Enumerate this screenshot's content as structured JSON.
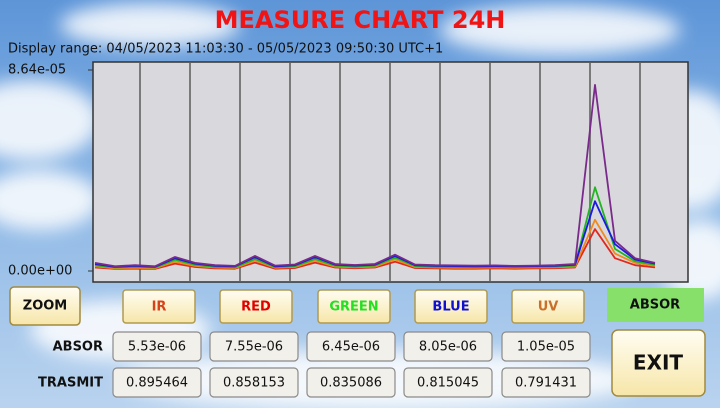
{
  "chart_data": {
    "type": "line",
    "title": "MEASURE CHART 24H",
    "subtitle": "Display range: 04/05/2023 11:03:30 - 05/05/2023 09:50:30 UTC+1",
    "ylim": [
      0,
      8.64e-05
    ],
    "yticks": [
      {
        "value": 8.64e-05,
        "label": "8.64e-05"
      },
      {
        "value": 0,
        "label": "0.00e+00"
      }
    ],
    "series": [
      {
        "name": "IR",
        "color": "#e0281e",
        "values": [
          1.5e-06,
          9e-07,
          1e-06,
          9e-07,
          3.2e-06,
          1.7e-06,
          1.1e-06,
          1e-06,
          3.6e-06,
          1e-06,
          1.3e-06,
          3.6e-06,
          1.5e-06,
          1.2e-06,
          1.5e-06,
          4e-06,
          1.3e-06,
          1.1e-06,
          1e-06,
          1e-06,
          1.1e-06,
          1e-06,
          1.1e-06,
          1.2e-06,
          1.5e-06,
          1.8e-05,
          5.5e-06,
          2.5e-06,
          1.6e-06
        ]
      },
      {
        "name": "RED",
        "color": "#f08a1e",
        "values": [
          2e-06,
          1.2e-06,
          1.4e-06,
          1.2e-06,
          4e-06,
          2.2e-06,
          1.5e-06,
          1.3e-06,
          4.5e-06,
          1.4e-06,
          1.7e-06,
          4.5e-06,
          1.9e-06,
          1.6e-06,
          1.9e-06,
          5e-06,
          1.7e-06,
          1.5e-06,
          1.4e-06,
          1.4e-06,
          1.5e-06,
          1.4e-06,
          1.5e-06,
          1.6e-06,
          1.9e-06,
          2.2e-05,
          7.5e-06,
          3.5e-06,
          2.2e-06
        ]
      },
      {
        "name": "GREEN",
        "color": "#22b422",
        "values": [
          2.5e-06,
          1.5e-06,
          1.8e-06,
          1.5e-06,
          4.8e-06,
          2.7e-06,
          1.8e-06,
          1.6e-06,
          5.2e-06,
          1.7e-06,
          2.1e-06,
          5.2e-06,
          2.3e-06,
          1.9e-06,
          2.3e-06,
          5.8e-06,
          2.1e-06,
          1.8e-06,
          1.7e-06,
          1.7e-06,
          1.8e-06,
          1.7e-06,
          1.8e-06,
          1.9e-06,
          2.3e-06,
          3.6e-05,
          9.5e-06,
          4.2e-06,
          2.7e-06
        ]
      },
      {
        "name": "BLUE",
        "color": "#1a1ae0",
        "values": [
          3e-06,
          1.8e-06,
          2.2e-06,
          1.8e-06,
          5.5e-06,
          3.2e-06,
          2.2e-06,
          2e-06,
          6e-06,
          2e-06,
          2.5e-06,
          6e-06,
          2.7e-06,
          2.3e-06,
          2.7e-06,
          6.5e-06,
          2.5e-06,
          2.2e-06,
          2.1e-06,
          2e-06,
          2.1e-06,
          2e-06,
          2.1e-06,
          2.2e-06,
          2.7e-06,
          3e-05,
          1.15e-05,
          5e-06,
          3.2e-06
        ]
      },
      {
        "name": "UV",
        "color": "#7a2a8a",
        "values": [
          3.5e-06,
          2e-06,
          2.5e-06,
          2e-06,
          6e-06,
          3.5e-06,
          2.5e-06,
          2.2e-06,
          6.5e-06,
          2.3e-06,
          2.8e-06,
          6.5e-06,
          3e-06,
          2.6e-06,
          3e-06,
          7e-06,
          2.8e-06,
          2.5e-06,
          2.4e-06,
          2.3e-06,
          2.4e-06,
          2.2e-06,
          2.3e-06,
          2.5e-06,
          3e-06,
          8e-05,
          1.3e-05,
          5.5e-06,
          3.5e-06
        ]
      }
    ]
  },
  "controls": {
    "zoom": "ZOOM",
    "mode": "ABSOR",
    "exit": "EXIT"
  },
  "readings": {
    "row_labels": [
      "ABSOR",
      "TRASMIT"
    ],
    "rows": [
      [
        "5.53e-06",
        "7.55e-06",
        "6.45e-06",
        "8.05e-06",
        "1.05e-05"
      ],
      [
        "0.895464",
        "0.858153",
        "0.835086",
        "0.815045",
        "0.791431"
      ]
    ]
  }
}
